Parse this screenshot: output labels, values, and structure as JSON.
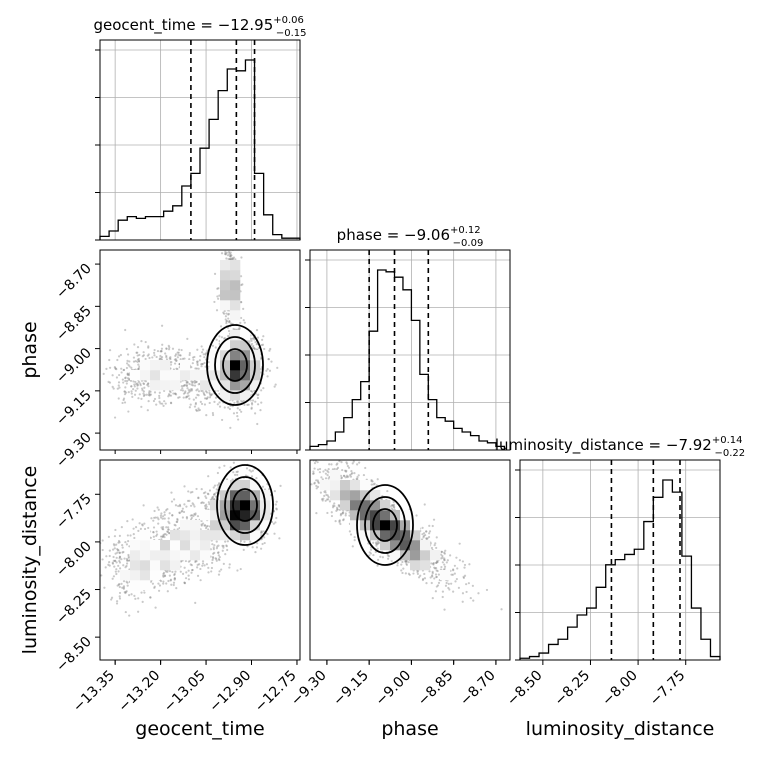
{
  "chart_data": {
    "type": "corner",
    "parameters": [
      {
        "name": "geocent_time",
        "axis_label": "geocent_time",
        "title_text": "geocent_time = −12.95",
        "title_sup": "+0.06",
        "title_sub": "−0.15",
        "range": [
          -13.4,
          -12.74
        ],
        "ticks": [
          -13.35,
          -13.2,
          -13.05,
          -12.9,
          -12.75
        ],
        "tick_labels": [
          "−13.35",
          "−13.20",
          "−13.05",
          "−12.90",
          "−12.75"
        ],
        "quantiles": [
          -13.1,
          -12.95,
          -12.89
        ],
        "histogram": {
          "bin_edges": [
            -13.4,
            -13.37,
            -13.34,
            -13.31,
            -13.28,
            -13.25,
            -13.22,
            -13.19,
            -13.16,
            -13.13,
            -13.1,
            -13.07,
            -13.04,
            -13.01,
            -12.98,
            -12.95,
            -12.92,
            -12.89,
            -12.86,
            -12.83,
            -12.8,
            -12.77,
            -12.74
          ],
          "counts": [
            2,
            5,
            11,
            13,
            12,
            13,
            13,
            16,
            19,
            30,
            37,
            51,
            67,
            83,
            95,
            94,
            100,
            37,
            14,
            3,
            1,
            1
          ]
        }
      },
      {
        "name": "phase",
        "axis_label": "phase",
        "title_text": "phase = −9.06",
        "title_sup": "+0.12",
        "title_sub": "−0.09",
        "range": [
          -9.36,
          -8.65
        ],
        "ticks": [
          -9.3,
          -9.15,
          -9.0,
          -8.85,
          -8.7
        ],
        "tick_labels": [
          "−9.30",
          "−9.15",
          "−9.00",
          "−8.85",
          "−8.70"
        ],
        "quantiles": [
          -9.15,
          -9.06,
          -8.94
        ],
        "histogram": {
          "bin_edges": [
            -9.36,
            -9.33,
            -9.3,
            -9.27,
            -9.24,
            -9.21,
            -9.18,
            -9.15,
            -9.12,
            -9.09,
            -9.06,
            -9.03,
            -9.0,
            -8.97,
            -8.94,
            -8.91,
            -8.88,
            -8.85,
            -8.82,
            -8.79,
            -8.76,
            -8.73,
            -8.7,
            -8.67
          ],
          "counts": [
            2,
            3,
            5,
            10,
            18,
            28,
            38,
            66,
            100,
            99,
            96,
            89,
            72,
            42,
            28,
            18,
            16,
            12,
            10,
            8,
            5,
            4,
            2
          ]
        }
      },
      {
        "name": "luminosity_distance",
        "axis_label": "luminosity_distance",
        "title_text": "luminosity_distance = −7.92",
        "title_sup": "+0.14",
        "title_sub": "−0.22",
        "range": [
          -8.62,
          -7.57
        ],
        "ticks": [
          -8.5,
          -8.25,
          -8.0,
          -7.75
        ],
        "tick_labels": [
          "−8.50",
          "−8.25",
          "−8.00",
          "−7.75"
        ],
        "quantiles": [
          -8.14,
          -7.92,
          -7.78
        ],
        "histogram": {
          "bin_edges": [
            -8.62,
            -8.57,
            -8.52,
            -8.47,
            -8.42,
            -8.37,
            -8.32,
            -8.27,
            -8.22,
            -8.17,
            -8.12,
            -8.07,
            -8.02,
            -7.97,
            -7.92,
            -7.87,
            -7.82,
            -7.77,
            -7.72,
            -7.67,
            -7.62,
            -7.57
          ],
          "counts": [
            1,
            2,
            4,
            9,
            12,
            19,
            26,
            30,
            42,
            55,
            58,
            61,
            64,
            80,
            94,
            104,
            97,
            60,
            30,
            12,
            2
          ]
        }
      }
    ],
    "pairs": [
      {
        "x": "geocent_time",
        "y": "phase",
        "density": "bimodal: a narrow vertical ridge near geocent_time −12.97 at phase −8.75 and a compact mode near geocent_time −12.94, phase −9.07, with an arm extending left toward −13.35 at phase −9.10"
      },
      {
        "x": "geocent_time",
        "y": "luminosity_distance",
        "density": "mode near geocent_time −12.93, luminosity_distance −7.80, broad tail toward −13.35 at −8.10"
      },
      {
        "x": "phase",
        "y": "luminosity_distance",
        "density": "strong negative correlation; mode near phase −9.12, luminosity_distance −7.85, extending to phase −8.75, luminosity_distance −8.15"
      }
    ]
  }
}
